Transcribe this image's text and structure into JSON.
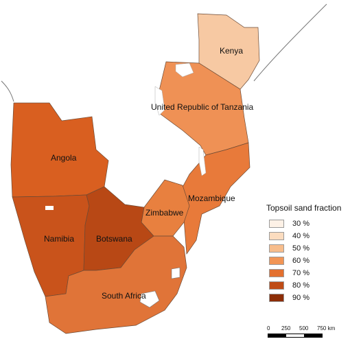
{
  "map": {
    "countries": [
      {
        "name": "Kenya",
        "fill": "#f7c9a3"
      },
      {
        "name": "United Republic of Tanzania",
        "fill": "#ef9155"
      },
      {
        "name": "Angola",
        "fill": "#d95f20"
      },
      {
        "name": "Mozambique",
        "fill": "#e87a3a"
      },
      {
        "name": "Zimbabwe",
        "fill": "#e8803f"
      },
      {
        "name": "Namibia",
        "fill": "#c9531b"
      },
      {
        "name": "Botswana",
        "fill": "#b84815"
      },
      {
        "name": "South Africa",
        "fill": "#e07438"
      }
    ]
  },
  "legend": {
    "title": "Topsoil sand fraction",
    "items": [
      {
        "label": "30 %",
        "color": "#fdf1e6"
      },
      {
        "label": "40 %",
        "color": "#fbdcbf"
      },
      {
        "label": "50 %",
        "color": "#f7bd8c"
      },
      {
        "label": "60 %",
        "color": "#f29555"
      },
      {
        "label": "70 %",
        "color": "#e3702f"
      },
      {
        "label": "80 %",
        "color": "#bf4c17"
      },
      {
        "label": "90 %",
        "color": "#8c2d06"
      }
    ]
  },
  "scale_bar": {
    "labels": [
      "0",
      "250",
      "500",
      "750 km"
    ]
  }
}
